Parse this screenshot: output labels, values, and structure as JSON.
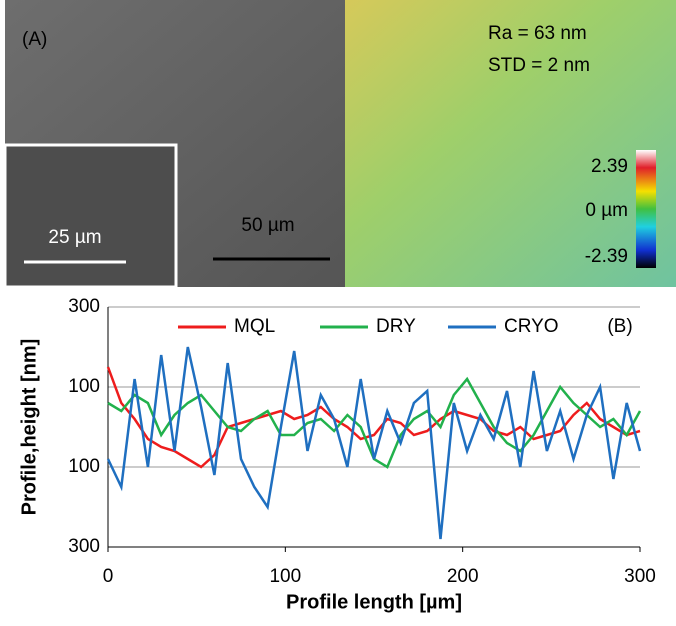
{
  "panel_a": {
    "label": "(A)",
    "inset_scale": "25 µm",
    "scale": "50 µm",
    "ra": "Ra = 63 nm",
    "std": "STD = 2 nm",
    "colorbar_labels": [
      "2.39",
      "0 µm",
      "-2.39"
    ]
  },
  "chart_data": {
    "type": "line",
    "panel_label": "(B)",
    "x_label": "Profile length [µm]",
    "y_label": "Profile,height [nm]",
    "xlim": [
      0,
      300
    ],
    "xticks": [
      0,
      100,
      200,
      300
    ],
    "ylim": [
      -300,
      300
    ],
    "yticks": [
      {
        "value": -300,
        "label": "300"
      },
      {
        "value": -100,
        "label": "100"
      },
      100,
      300
    ],
    "grid": true,
    "legend": "top",
    "x": [
      0,
      7.5,
      15,
      22.5,
      30,
      37.5,
      45,
      52.5,
      60,
      67.5,
      75,
      82.5,
      90,
      97.5,
      105,
      112.5,
      120,
      127.5,
      135,
      142.5,
      150,
      157.5,
      165,
      172.5,
      180,
      187.5,
      195,
      202.5,
      210,
      217.5,
      225,
      232.5,
      240,
      247.5,
      255,
      262.5,
      270,
      277.5,
      285,
      292.5,
      300
    ],
    "series": [
      {
        "name": "MQL",
        "color": "#ee1c1c",
        "values": [
          150,
          60,
          20,
          -30,
          -50,
          -60,
          -80,
          -100,
          -70,
          0,
          10,
          20,
          30,
          40,
          20,
          30,
          50,
          20,
          0,
          -30,
          -20,
          20,
          10,
          -20,
          -10,
          20,
          40,
          30,
          20,
          -10,
          -20,
          0,
          -30,
          -20,
          -10,
          30,
          60,
          20,
          0,
          -20,
          -10
        ]
      },
      {
        "name": "DRY",
        "color": "#22b14c",
        "values": [
          60,
          40,
          80,
          60,
          -20,
          30,
          60,
          80,
          40,
          0,
          -10,
          20,
          40,
          -20,
          -20,
          10,
          20,
          -10,
          30,
          0,
          -80,
          -100,
          -20,
          20,
          40,
          0,
          80,
          120,
          60,
          0,
          -40,
          -60,
          -20,
          40,
          100,
          60,
          30,
          0,
          20,
          -20,
          40
        ]
      },
      {
        "name": "CRYO",
        "color": "#1f6fc0",
        "values": [
          -80,
          -150,
          120,
          -100,
          180,
          -60,
          200,
          50,
          -120,
          160,
          -80,
          -150,
          -200,
          0,
          190,
          -60,
          80,
          20,
          -100,
          120,
          -80,
          40,
          -40,
          60,
          90,
          -280,
          60,
          -60,
          30,
          -30,
          90,
          -100,
          140,
          -60,
          40,
          -80,
          30,
          100,
          -130,
          60,
          -60
        ]
      }
    ]
  }
}
